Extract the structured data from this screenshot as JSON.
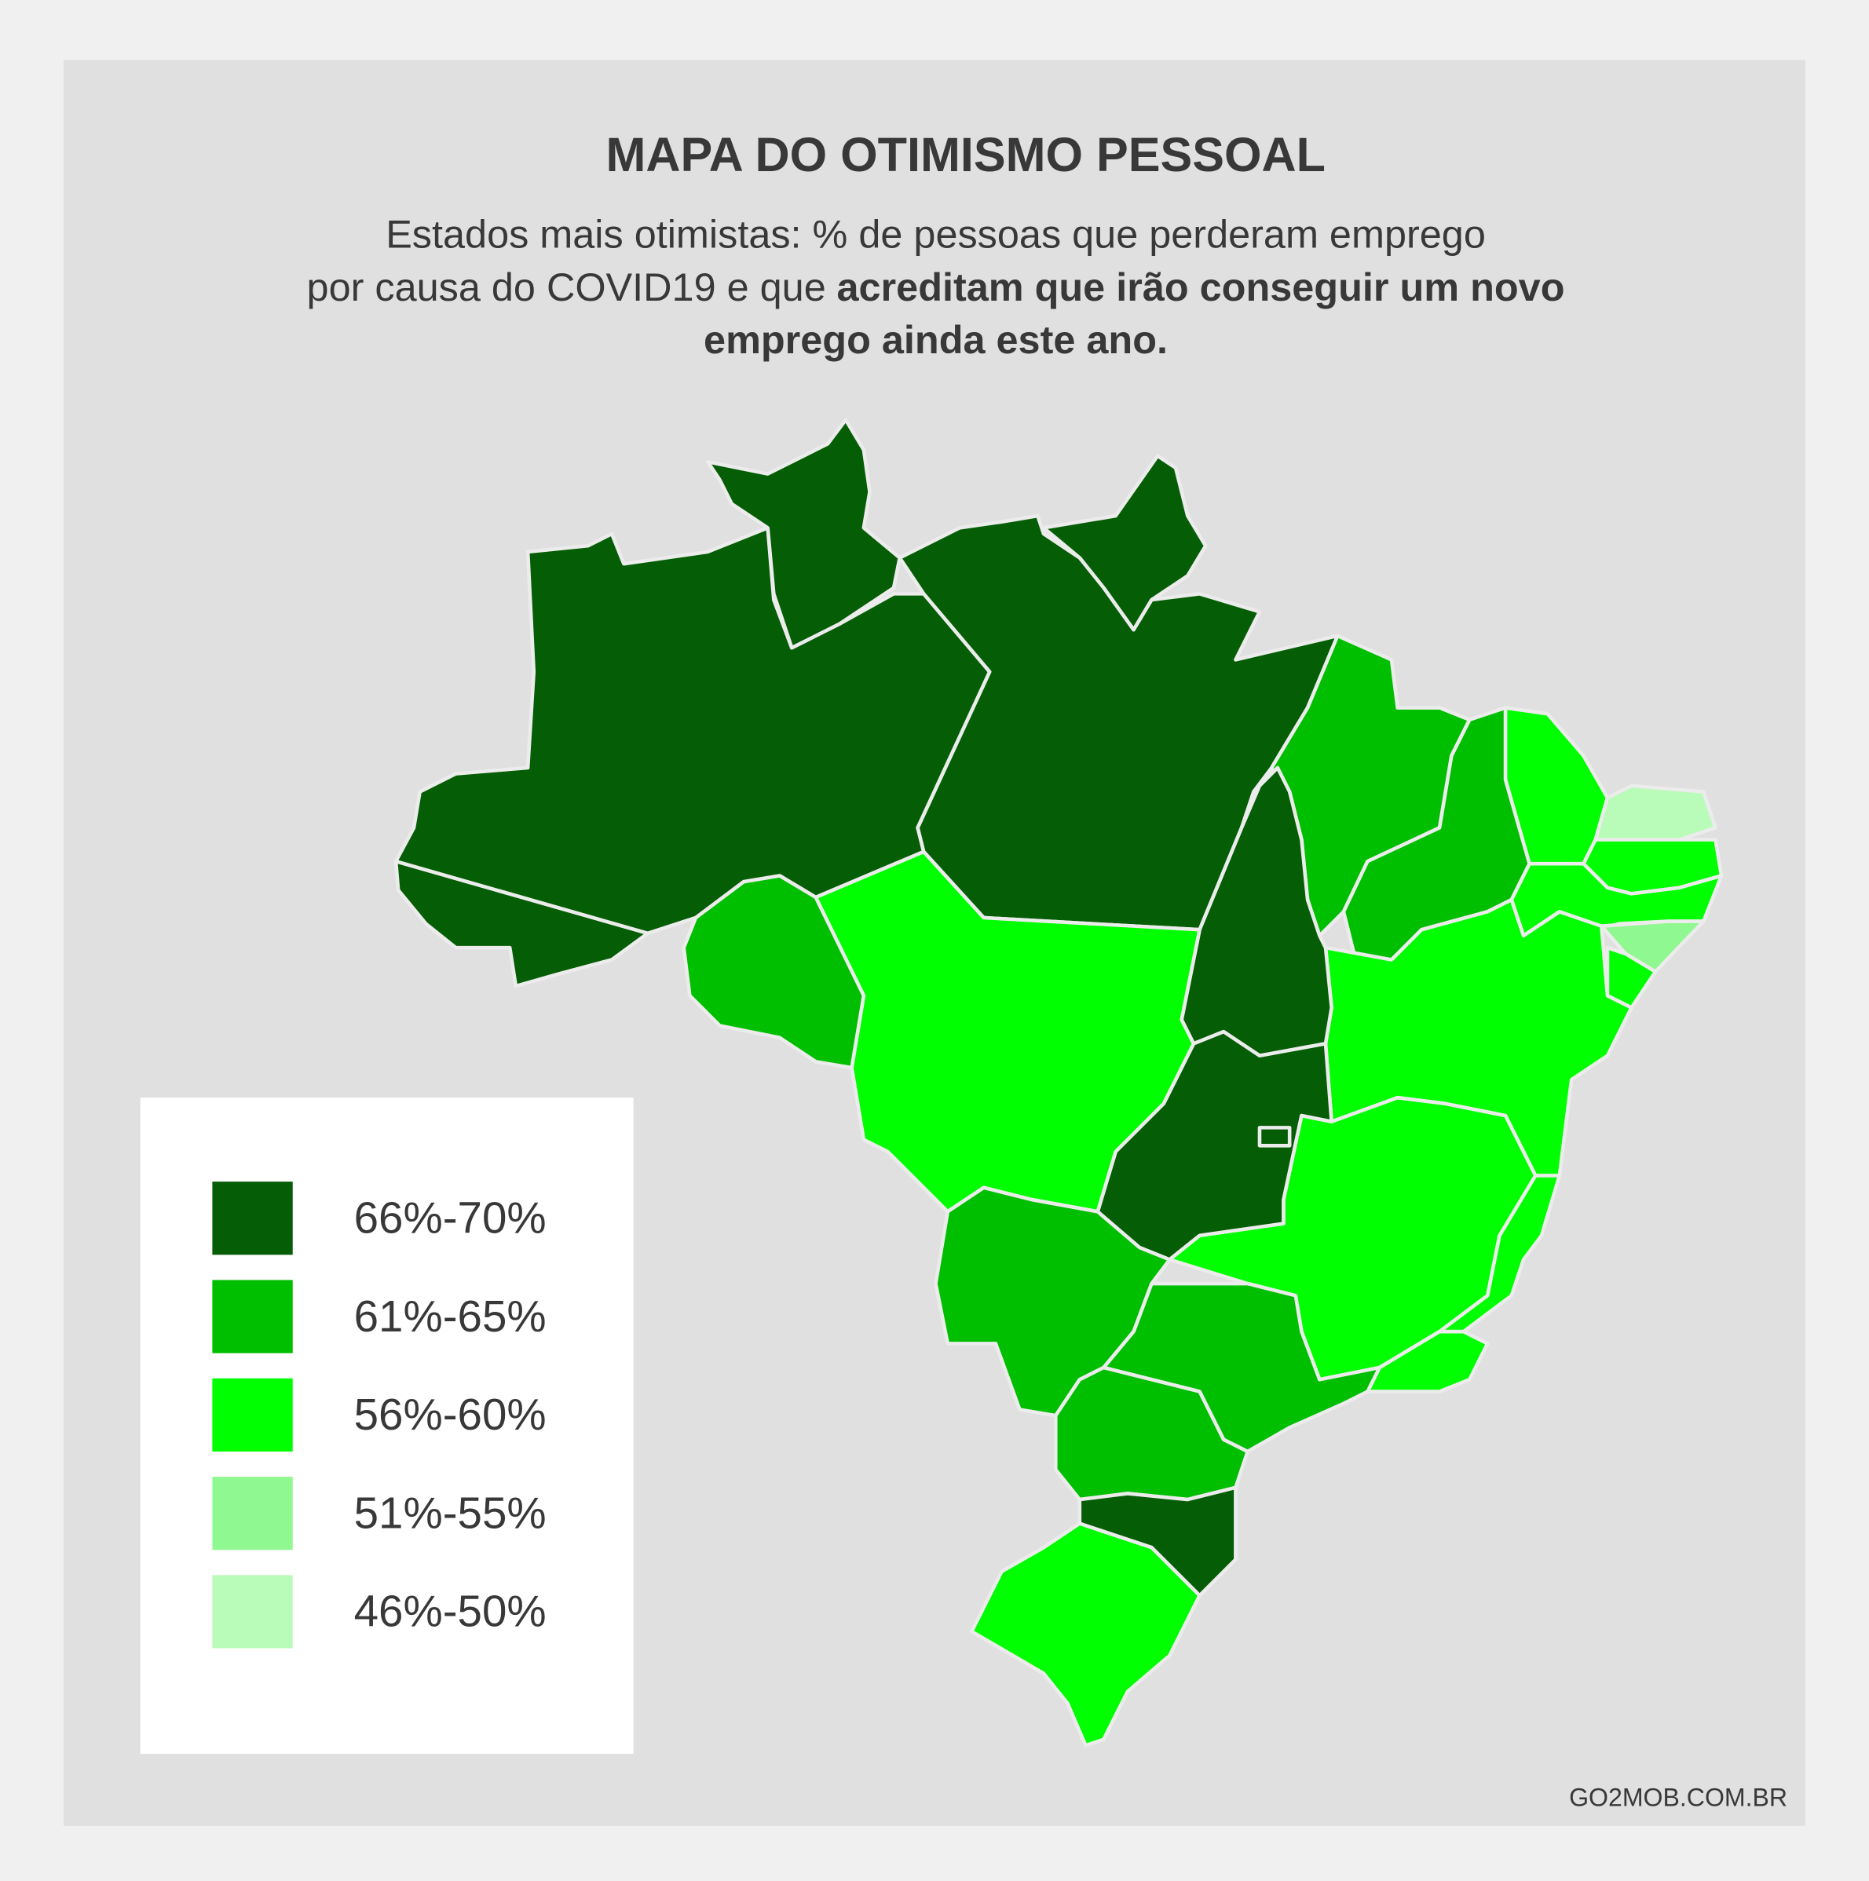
{
  "header": {
    "title": "MAPA DO OTIMISMO PESSOAL",
    "subtitle": {
      "lines": [
        [
          {
            "text": "Estados mais otimistas: % de pessoas que perderam emprego",
            "bold": false
          }
        ],
        [
          {
            "text": "por causa do COVID19 e que",
            "bold": false
          },
          {
            "text": "acreditam que irão conseguir um novo",
            "bold": true
          }
        ],
        [
          {
            "text": "emprego ainda este ano.",
            "bold": true
          }
        ]
      ]
    }
  },
  "legend": {
    "items": [
      {
        "label": "66%-70%",
        "color": "#055e05"
      },
      {
        "label": "61%-65%",
        "color": "#00bf00"
      },
      {
        "label": "56%-60%",
        "color": "#00ff00"
      },
      {
        "label": "51%-55%",
        "color": "#90f890"
      },
      {
        "label": "46%-50%",
        "color": "#b9fbb9"
      }
    ]
  },
  "footer": {
    "source": "GO2MOB.COM.BR"
  }
}
